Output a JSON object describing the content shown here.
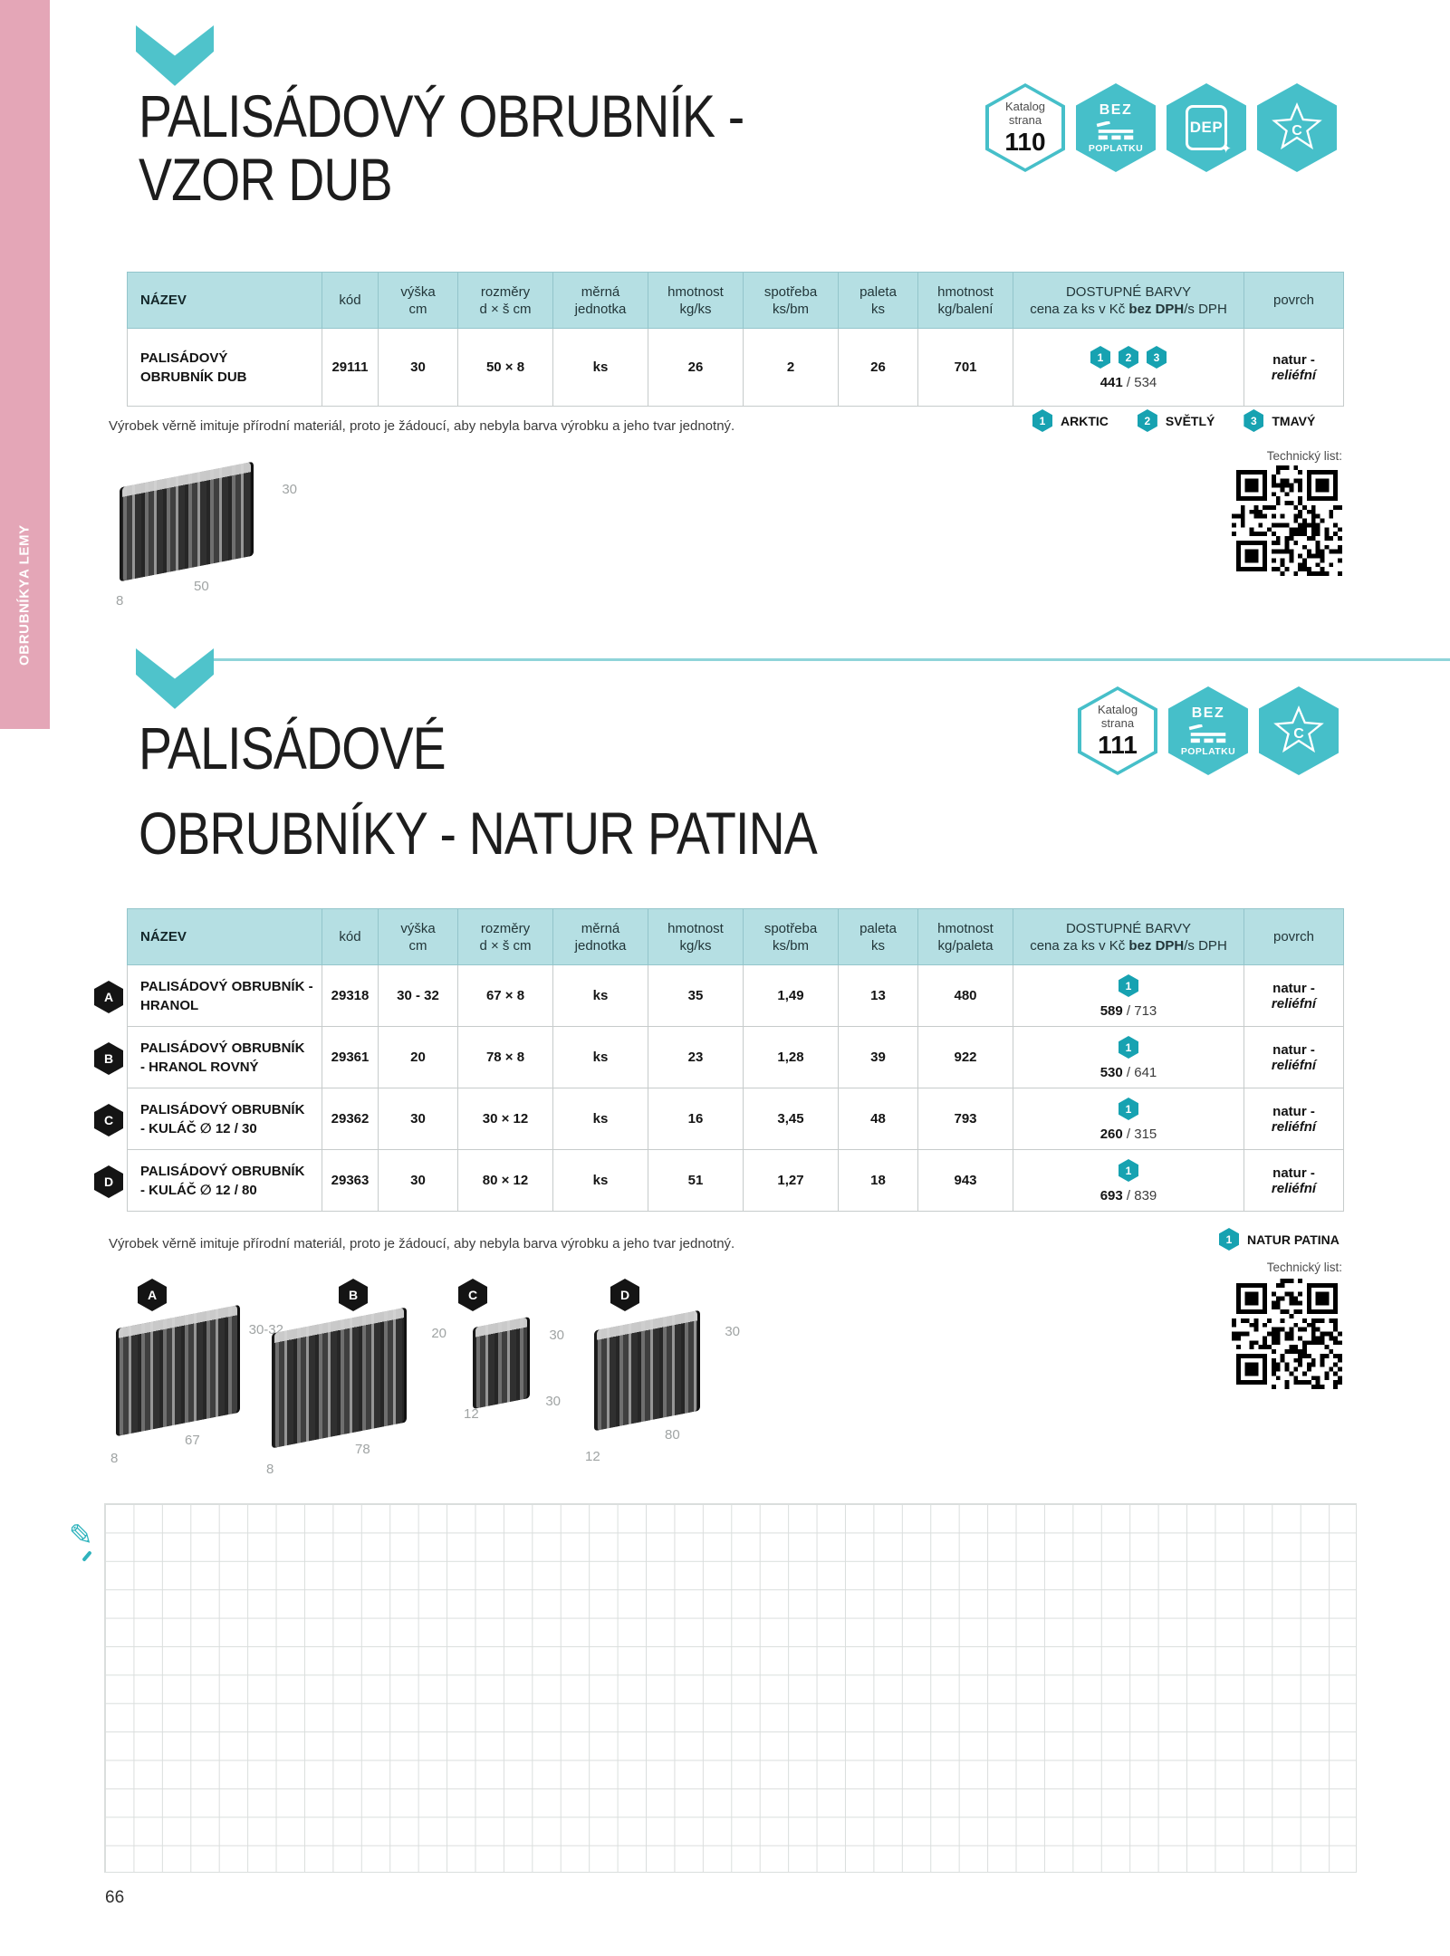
{
  "sidebar": {
    "line1": "OBRUBNÍKY",
    "line2": "A LEMY"
  },
  "page_number": "66",
  "note": "Výrobek věrně imituje přírodní materiál, proto je žádoucí, aby nebyla barva výrobku a jeho tvar jednotný.",
  "tech_label": "Technický list:",
  "badges": {
    "catalog_line1": "Katalog",
    "catalog_line2": "strana",
    "fee_top": "BEZ",
    "fee_bottom": "POPLATKU",
    "dep": "DEP",
    "star_letter": "C"
  },
  "colors": {
    "accent_teal": "#4fc3cb",
    "chip_teal": "#17a2b1",
    "header_bg": "#b5dfe3",
    "sidebar_pink": "#e4a6b7"
  },
  "section1": {
    "title_line1": "PALISÁDOVÝ OBRUBNÍK -",
    "title_line2": "VZOR DUB",
    "catalog_page": "110",
    "table": {
      "h": {
        "nazev": "NÁZEV",
        "kod": "kód",
        "vyska": [
          "výška",
          "cm"
        ],
        "rozmery": [
          "rozměry",
          "d × š cm"
        ],
        "jednotka": [
          "měrná",
          "jednotka"
        ],
        "hmot": [
          "hmotnost",
          "kg/ks"
        ],
        "spotreba": [
          "spotřeba",
          "ks/bm"
        ],
        "paleta": [
          "paleta",
          "ks"
        ],
        "hmot2": [
          "hmotnost",
          "kg/balení"
        ],
        "barvy1": "DOSTUPNÉ BARVY",
        "barvy2a": "cena za ks v Kč ",
        "barvy2b": "bez DPH",
        "barvy2c": "/s DPH",
        "povrch": "povrch"
      },
      "row": {
        "name1": "PALISÁDOVÝ",
        "name2": "OBRUBNÍK DUB",
        "kod": "29111",
        "vyska": "30",
        "rozmery": "50 × 8",
        "jednotka": "ks",
        "hmotnost": "26",
        "spotreba": "2",
        "paleta": "26",
        "hmotnost2": "701",
        "chips": [
          "1",
          "2",
          "3"
        ],
        "price_net": "441",
        "price_sep": " / ",
        "price_gross": "534",
        "povrch1": "natur -",
        "povrch2": "reliéfní"
      }
    },
    "legend": [
      {
        "num": "1",
        "label": "ARKTIC"
      },
      {
        "num": "2",
        "label": "SVĚTLÝ"
      },
      {
        "num": "3",
        "label": "TMAVÝ"
      }
    ],
    "diagram": {
      "h": "30",
      "l": "50",
      "w": "8"
    }
  },
  "section2": {
    "title_line1": "PALISÁDOVÉ",
    "title_line2": "OBRUBNÍKY - NATUR PATINA",
    "catalog_page": "111",
    "table": {
      "h": {
        "nazev": "NÁZEV",
        "kod": "kód",
        "vyska": [
          "výška",
          "cm"
        ],
        "rozmery": [
          "rozměry",
          "d × š cm"
        ],
        "jednotka": [
          "měrná",
          "jednotka"
        ],
        "hmot": [
          "hmotnost",
          "kg/ks"
        ],
        "spotreba": [
          "spotřeba",
          "ks/bm"
        ],
        "paleta": [
          "paleta",
          "ks"
        ],
        "hmot2": [
          "hmotnost",
          "kg/paleta"
        ],
        "barvy1": "DOSTUPNÉ BARVY",
        "barvy2a": "cena za ks v Kč ",
        "barvy2b": "bez DPH",
        "barvy2c": "/s DPH",
        "povrch": "povrch"
      },
      "rows": [
        {
          "letter": "A",
          "name1": "PALISÁDOVÝ OBRUBNÍK -",
          "name2": "HRANOL",
          "kod": "29318",
          "vyska": "30 - 32",
          "rozmery": "67 × 8",
          "jednotka": "ks",
          "hmotnost": "35",
          "spotreba": "1,49",
          "paleta": "13",
          "hmotnost2": "480",
          "chip": "1",
          "price_net": "589",
          "price_sep": " / ",
          "price_gross": "713",
          "povrch1": "natur -",
          "povrch2": "reliéfní"
        },
        {
          "letter": "B",
          "name1": "PALISÁDOVÝ OBRUBNÍK",
          "name2": "- HRANOL ROVNÝ",
          "kod": "29361",
          "vyska": "20",
          "rozmery": "78 × 8",
          "jednotka": "ks",
          "hmotnost": "23",
          "spotreba": "1,28",
          "paleta": "39",
          "hmotnost2": "922",
          "chip": "1",
          "price_net": "530",
          "price_sep": " / ",
          "price_gross": "641",
          "povrch1": "natur -",
          "povrch2": "reliéfní"
        },
        {
          "letter": "C",
          "name1": "PALISÁDOVÝ OBRUBNÍK",
          "name2": "- KULÁČ ∅ 12 / 30",
          "kod": "29362",
          "vyska": "30",
          "rozmery": "30 × 12",
          "jednotka": "ks",
          "hmotnost": "16",
          "spotreba": "3,45",
          "paleta": "48",
          "hmotnost2": "793",
          "chip": "1",
          "price_net": "260",
          "price_sep": " / ",
          "price_gross": "315",
          "povrch1": "natur -",
          "povrch2": "reliéfní"
        },
        {
          "letter": "D",
          "name1": "PALISÁDOVÝ OBRUBNÍK",
          "name2": "- KULÁČ ∅ 12 / 80",
          "kod": "29363",
          "vyska": "30",
          "rozmery": "80 × 12",
          "jednotka": "ks",
          "hmotnost": "51",
          "spotreba": "1,27",
          "paleta": "18",
          "hmotnost2": "943",
          "chip": "1",
          "price_net": "693",
          "price_sep": " / ",
          "price_gross": "839",
          "povrch1": "natur -",
          "povrch2": "reliéfní"
        }
      ]
    },
    "legend": [
      {
        "num": "1",
        "label": "NATUR PATINA"
      }
    ],
    "diagrams": [
      {
        "letter": "A",
        "h": "30-32",
        "l": "67",
        "w": "8"
      },
      {
        "letter": "B",
        "h": "20",
        "l": "78",
        "w": "8"
      },
      {
        "letter": "C",
        "h": "30",
        "l": "30",
        "w": "12"
      },
      {
        "letter": "D",
        "h": "30",
        "l": "80",
        "w": "12"
      }
    ]
  }
}
